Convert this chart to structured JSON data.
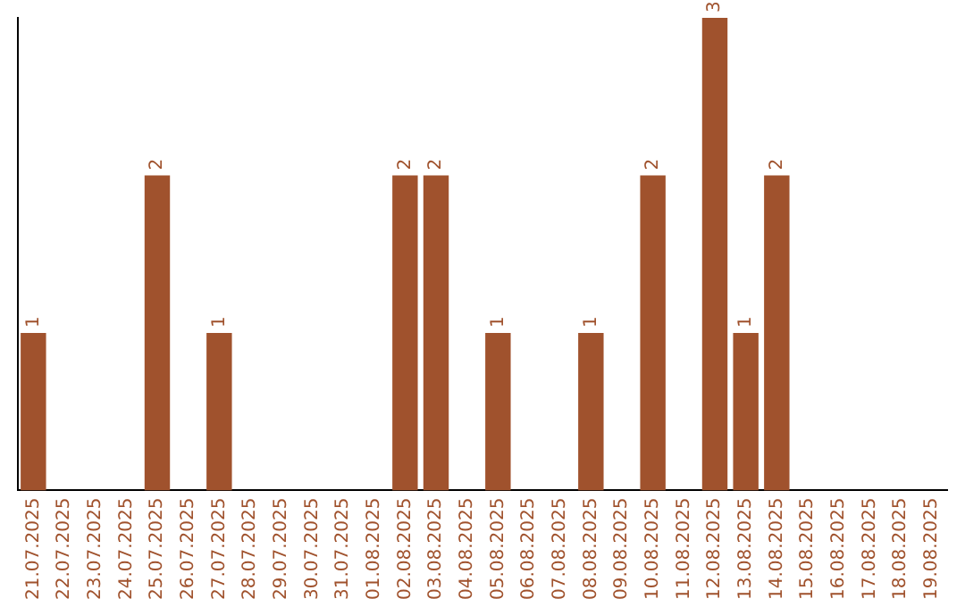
{
  "chart_data": {
    "type": "bar",
    "categories": [
      "21.07.2025",
      "22.07.2025",
      "23.07.2025",
      "24.07.2025",
      "25.07.2025",
      "26.07.2025",
      "27.07.2025",
      "28.07.2025",
      "29.07.2025",
      "30.07.2025",
      "31.07.2025",
      "01.08.2025",
      "02.08.2025",
      "03.08.2025",
      "04.08.2025",
      "05.08.2025",
      "06.08.2025",
      "07.08.2025",
      "08.08.2025",
      "09.08.2025",
      "10.08.2025",
      "11.08.2025",
      "12.08.2025",
      "13.08.2025",
      "14.08.2025",
      "15.08.2025",
      "16.08.2025",
      "17.08.2025",
      "18.08.2025",
      "19.08.2025"
    ],
    "values": [
      1,
      0,
      0,
      0,
      2,
      0,
      1,
      0,
      0,
      0,
      0,
      0,
      2,
      2,
      0,
      1,
      0,
      0,
      1,
      0,
      2,
      0,
      3,
      1,
      2,
      0,
      0,
      0,
      0,
      0
    ],
    "value_labels": [
      "1",
      null,
      null,
      null,
      "2",
      null,
      "1",
      null,
      null,
      null,
      null,
      null,
      "2",
      "2",
      null,
      "1",
      null,
      null,
      "1",
      null,
      "2",
      null,
      "3",
      "1",
      "2",
      null,
      null,
      null,
      null,
      null
    ],
    "color": "#a0522d",
    "grid": false,
    "legend": false,
    "tick_labels": "x"
  }
}
